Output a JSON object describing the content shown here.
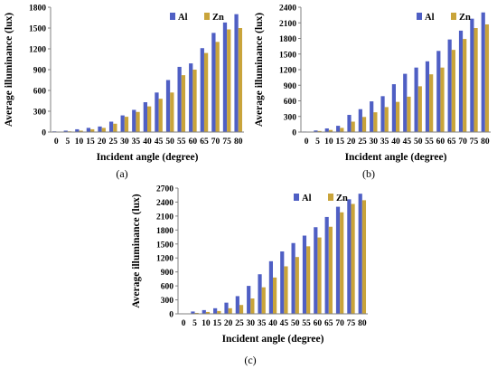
{
  "chart_data": [
    {
      "type": "bar",
      "panel_label": "(a)",
      "xlabel": "Incident angle (degree)",
      "ylabel": "Average illuminance (lux)",
      "ylim": [
        0,
        1800
      ],
      "yticks": [
        "0",
        "300",
        "600",
        "900",
        "1200",
        "1500",
        "1800"
      ],
      "categories": [
        "0",
        "5",
        "10",
        "15",
        "20",
        "25",
        "30",
        "35",
        "40",
        "45",
        "50",
        "55",
        "60",
        "65",
        "70",
        "75",
        "80"
      ],
      "legend_position": "top-right",
      "grid": false,
      "series": [
        {
          "name": "Al",
          "color": "#4f5fc4",
          "values": [
            10,
            20,
            40,
            60,
            80,
            150,
            240,
            320,
            430,
            570,
            750,
            940,
            990,
            1210,
            1430,
            1580,
            1700
          ]
        },
        {
          "name": "Zn",
          "color": "#c9a43a",
          "values": [
            5,
            10,
            20,
            40,
            60,
            120,
            220,
            290,
            370,
            480,
            570,
            820,
            900,
            1140,
            1300,
            1480,
            1500
          ]
        }
      ]
    },
    {
      "type": "bar",
      "panel_label": "(b)",
      "xlabel": "Incident angle (degree)",
      "ylabel": "Average illuminance (lux)",
      "ylim": [
        0,
        2400
      ],
      "yticks": [
        "0",
        "300",
        "600",
        "900",
        "1200",
        "1500",
        "1800",
        "2100",
        "2400"
      ],
      "categories": [
        "0",
        "5",
        "10",
        "15",
        "20",
        "25",
        "30",
        "35",
        "40",
        "45",
        "50",
        "55",
        "60",
        "65",
        "70",
        "75",
        "80"
      ],
      "legend_position": "top-right",
      "grid": false,
      "series": [
        {
          "name": "Al",
          "color": "#4f5fc4",
          "values": [
            10,
            30,
            70,
            120,
            330,
            440,
            590,
            690,
            920,
            1120,
            1240,
            1360,
            1560,
            1780,
            1950,
            2180,
            2300
          ]
        },
        {
          "name": "Zn",
          "color": "#c9a43a",
          "values": [
            5,
            20,
            40,
            80,
            200,
            290,
            380,
            480,
            580,
            680,
            880,
            1110,
            1240,
            1580,
            1790,
            2000,
            2070
          ]
        }
      ]
    },
    {
      "type": "bar",
      "panel_label": "(c)",
      "xlabel": "Incident angle (degree)",
      "ylabel": "Average illuminance (lux)",
      "ylim": [
        0,
        2700
      ],
      "yticks": [
        "0",
        "300",
        "600",
        "900",
        "1200",
        "1500",
        "1800",
        "2100",
        "2400",
        "2700"
      ],
      "categories": [
        "0",
        "5",
        "10",
        "15",
        "20",
        "25",
        "30",
        "35",
        "40",
        "45",
        "50",
        "55",
        "60",
        "65",
        "70",
        "75",
        "80"
      ],
      "legend_position": "top-right",
      "grid": false,
      "series": [
        {
          "name": "Al",
          "color": "#4f5fc4",
          "values": [
            10,
            50,
            80,
            120,
            240,
            380,
            600,
            850,
            1130,
            1340,
            1520,
            1680,
            1860,
            2080,
            2300,
            2460,
            2580
          ]
        },
        {
          "name": "Zn",
          "color": "#c9a43a",
          "values": [
            5,
            20,
            40,
            60,
            120,
            190,
            330,
            570,
            780,
            1020,
            1220,
            1450,
            1640,
            1870,
            2180,
            2360,
            2440
          ]
        }
      ]
    }
  ]
}
